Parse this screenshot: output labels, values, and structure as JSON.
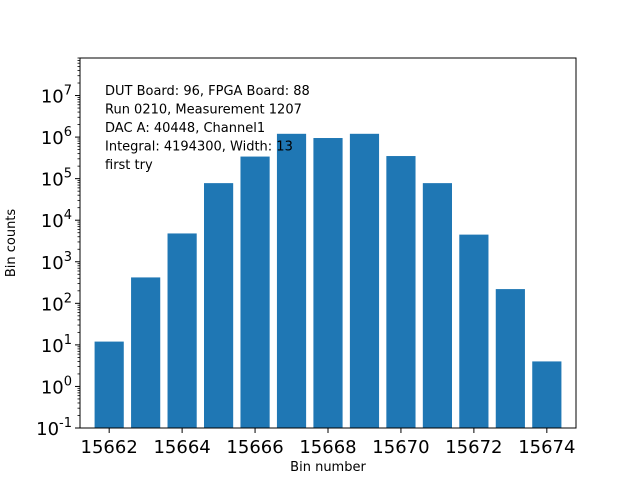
{
  "chart_data": {
    "type": "bar",
    "x": [
      15662,
      15663,
      15664,
      15665,
      15666,
      15667,
      15668,
      15669,
      15670,
      15671,
      15672,
      15673,
      15674
    ],
    "values": [
      12,
      420,
      4800,
      78000,
      340000,
      1200000,
      950000,
      1200000,
      350000,
      78000,
      4500,
      220,
      4
    ],
    "xlabel": "Bin number",
    "ylabel": "Bin counts",
    "yscale": "log",
    "ylim": [
      0.1,
      80000000
    ],
    "xlim": [
      15661.2,
      15674.8
    ],
    "xticks": [
      15662,
      15664,
      15666,
      15668,
      15670,
      15672,
      15674
    ],
    "yticks": [
      {
        "exp": "-1",
        "value": 0.1
      },
      {
        "exp": "0",
        "value": 1
      },
      {
        "exp": "1",
        "value": 10
      },
      {
        "exp": "2",
        "value": 100
      },
      {
        "exp": "3",
        "value": 1000
      },
      {
        "exp": "4",
        "value": 10000
      },
      {
        "exp": "5",
        "value": 100000
      },
      {
        "exp": "6",
        "value": 1000000
      },
      {
        "exp": "7",
        "value": 10000000
      }
    ],
    "ytick_base": "10",
    "bar_color": "#1f77b4",
    "grid": false,
    "annotations": [
      "DUT Board: 96, FPGA Board: 88",
      "Run 0210, Measurement 1207",
      "DAC A: 40448, Channel1",
      "Integral: 4194300, Width: 13",
      "first try"
    ]
  }
}
